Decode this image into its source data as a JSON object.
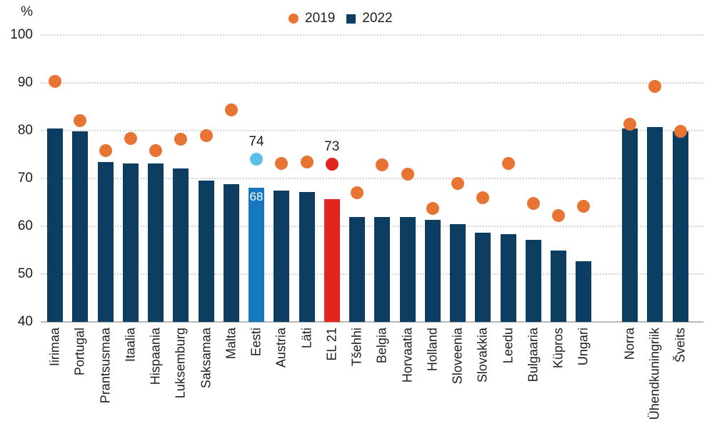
{
  "chart_data": {
    "type": "bar+scatter",
    "title": "",
    "ylabel": "%",
    "ylim": [
      40,
      100
    ],
    "yticks": [
      100,
      90,
      80,
      70,
      60,
      50,
      40
    ],
    "grid": "horizontal dotted",
    "legend_position": "top-center",
    "categories": [
      "Iirimaa",
      "Portugal",
      "Prantsusmaa",
      "Itaalia",
      "Hispaania",
      "Luksemburg",
      "Saksamaa",
      "Malta",
      "Eesti",
      "Austria",
      "Läti",
      "EL 21",
      "Tšehhi",
      "Belgia",
      "Horvaatia",
      "Holland",
      "Sloveenia",
      "Slovakkia",
      "Leedu",
      "Bulgaaria",
      "Küpros",
      "Ungari",
      "Norra",
      "Ühendkuningriik",
      "Šveits"
    ],
    "separator_after": "Ungari",
    "series": [
      {
        "name": "2019",
        "type": "scatter",
        "color": "#e87434",
        "values": [
          90.3,
          82.1,
          75.8,
          78.3,
          75.8,
          78.2,
          78.9,
          84.3,
          74,
          73.1,
          73.4,
          73,
          67,
          72.8,
          70.9,
          63.8,
          68.9,
          66,
          73.2,
          64.8,
          62.3,
          64.2,
          81.3,
          89.3,
          79.8
        ]
      },
      {
        "name": "2022",
        "type": "bar",
        "color": "#0d3d61",
        "values": [
          80.5,
          79.9,
          73.5,
          73.1,
          73.1,
          72.1,
          69.6,
          68.8,
          68,
          67.5,
          67.2,
          65.6,
          62,
          62,
          62,
          61.3,
          60.4,
          58.6,
          58.3,
          57.1,
          55,
          52.7,
          80.4,
          80.8,
          79.9
        ]
      }
    ],
    "highlights": [
      {
        "category": "Eesti",
        "bar_color": "#1878be",
        "dot_color": "#5bc0e8",
        "bar_label": "68",
        "dot_label": "74"
      },
      {
        "category": "EL 21",
        "bar_color": "#e1261d",
        "dot_color": "#e1261d",
        "dot_label": "73"
      }
    ],
    "legend": [
      {
        "label": "2019",
        "marker": "dot",
        "color": "#e87434"
      },
      {
        "label": "2022",
        "marker": "square",
        "color": "#0d3d61"
      }
    ]
  },
  "colors": {
    "bar_default": "#0d3d61",
    "dot_default": "#e87434",
    "highlight_bar_blue": "#1878be",
    "highlight_dot_lightblue": "#5bc0e8",
    "highlight_red": "#e1261d",
    "gridline": "#d4d4d4",
    "baseline": "#b9b9b9",
    "text": "#1d1d1b"
  }
}
